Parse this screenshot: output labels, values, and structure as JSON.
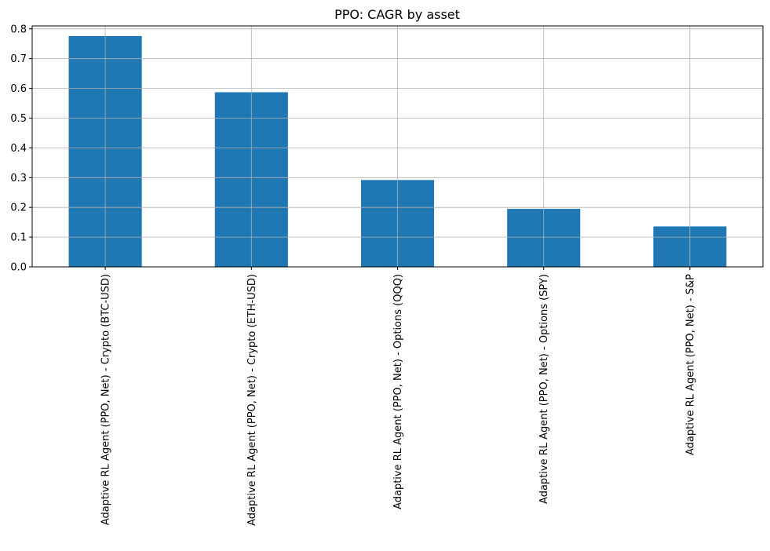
{
  "chart_data": {
    "type": "bar",
    "title": "PPO: CAGR by asset",
    "xlabel": "",
    "ylabel": "",
    "categories": [
      "Adaptive RL Agent (PPO, Net) - Crypto (BTC-USD)",
      "Adaptive RL Agent (PPO, Net) - Crypto (ETH-USD)",
      "Adaptive RL Agent (PPO, Net) - Options (QQQ)",
      "Adaptive RL Agent (PPO, Net) - Options (SPY)",
      "Adaptive RL Agent (PPO, Net) - S&P"
    ],
    "values": [
      0.776,
      0.587,
      0.292,
      0.195,
      0.136
    ],
    "ylim": [
      0,
      0.81
    ],
    "yticks": [
      0.0,
      0.1,
      0.2,
      0.3,
      0.4,
      0.5,
      0.6,
      0.7,
      0.8
    ],
    "ytick_labels": [
      "0.0",
      "0.1",
      "0.2",
      "0.3",
      "0.4",
      "0.5",
      "0.6",
      "0.7",
      "0.8"
    ],
    "grid": true,
    "legend": "none",
    "bar_color": "#1f77b4"
  }
}
